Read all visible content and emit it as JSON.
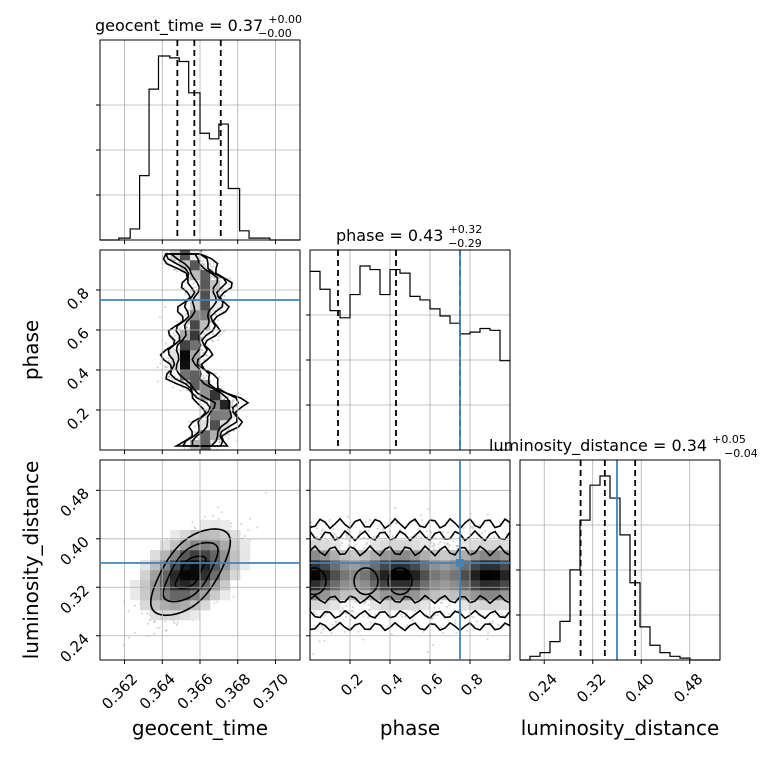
{
  "chart_data": {
    "type": "corner",
    "parameters": [
      "geocent_time",
      "phase",
      "luminosity_distance"
    ],
    "axis_labels": [
      "geocent_time",
      "phase",
      "luminosity_distance"
    ],
    "titles": {
      "geocent_time": {
        "name": "geocent_time",
        "median": "0.37",
        "plus": "+0.00",
        "minus": "−0.00"
      },
      "phase": {
        "name": "phase",
        "median": "0.43",
        "plus": "+0.32",
        "minus": "−0.29"
      },
      "luminosity_distance": {
        "name": "luminosity_distance",
        "median": "0.34",
        "plus": "+0.05",
        "minus": "−0.04"
      }
    },
    "ranges": {
      "geocent_time": [
        0.3607,
        0.3713
      ],
      "phase": [
        0.0,
        1.0
      ],
      "luminosity_distance": [
        0.2,
        0.53
      ]
    },
    "ticks": {
      "geocent_time": {
        "values": [
          0.362,
          0.364,
          0.366,
          0.368,
          0.37
        ],
        "labels": [
          "0.362",
          "0.364",
          "0.366",
          "0.368",
          "0.370"
        ]
      },
      "phase": {
        "values": [
          0.2,
          0.4,
          0.6,
          0.8
        ],
        "labels": [
          "0.2",
          "0.4",
          "0.6",
          "0.8"
        ]
      },
      "luminosity_distance": {
        "values": [
          0.24,
          0.32,
          0.4,
          0.48
        ],
        "labels": [
          "0.24",
          "0.32",
          "0.40",
          "0.48"
        ]
      }
    },
    "quantiles": {
      "geocent_time": [
        0.3648,
        0.3657,
        0.3671
      ],
      "phase": [
        0.14,
        0.43,
        0.75
      ],
      "luminosity_distance": [
        0.3,
        0.34,
        0.39
      ]
    },
    "truths": {
      "phase": 0.75,
      "luminosity_distance": 0.36
    },
    "histograms": {
      "geocent_time": {
        "edges": [
          0.3607,
          0.3612,
          0.3617,
          0.3623,
          0.3628,
          0.3633,
          0.3638,
          0.3644,
          0.3649,
          0.3654,
          0.366,
          0.3665,
          0.367,
          0.3675,
          0.3681,
          0.3686,
          0.3691,
          0.3697,
          0.3702,
          0.3707,
          0.3713
        ],
        "counts": [
          0,
          0,
          1,
          6,
          35,
          82,
          100,
          99,
          97,
          80,
          58,
          55,
          63,
          28,
          5,
          1,
          1,
          0,
          0,
          0
        ]
      },
      "phase": {
        "edges": [
          0.0,
          0.05,
          0.1,
          0.15,
          0.2,
          0.25,
          0.3,
          0.35,
          0.4,
          0.45,
          0.5,
          0.55,
          0.6,
          0.65,
          0.7,
          0.75,
          0.8,
          0.85,
          0.9,
          0.95,
          1.0
        ],
        "counts": [
          100,
          90,
          78,
          74,
          87,
          103,
          101,
          87,
          101,
          99,
          86,
          84,
          79,
          75,
          71,
          65,
          66,
          68,
          67,
          50
        ]
      },
      "luminosity_distance": {
        "edges": [
          0.2,
          0.2165,
          0.233,
          0.2495,
          0.266,
          0.2825,
          0.299,
          0.3155,
          0.332,
          0.3485,
          0.365,
          0.3815,
          0.398,
          0.4145,
          0.431,
          0.4475,
          0.464,
          0.4805,
          0.497,
          0.5135,
          0.53
        ],
        "counts": [
          0,
          2,
          4,
          10,
          21,
          49,
          76,
          95,
          100,
          88,
          68,
          42,
          18,
          8,
          4,
          2,
          1,
          0,
          0,
          0
        ]
      }
    },
    "contours_2d": {
      "phase_vs_geocent_time": {
        "x": "geocent_time",
        "y": "phase",
        "ridge": [
          [
            0.365,
            0.99
          ],
          [
            0.3657,
            0.92
          ],
          [
            0.3664,
            0.85
          ],
          [
            0.3662,
            0.72
          ],
          [
            0.3658,
            0.62
          ],
          [
            0.3654,
            0.52
          ],
          [
            0.3652,
            0.44
          ],
          [
            0.3656,
            0.35
          ],
          [
            0.3664,
            0.29
          ],
          [
            0.3672,
            0.24
          ],
          [
            0.367,
            0.15
          ],
          [
            0.3663,
            0.06
          ],
          [
            0.366,
            0.0
          ]
        ]
      },
      "luminosity_distance_vs_geocent_time": {
        "x": "geocent_time",
        "y": "luminosity_distance",
        "center": [
          0.3655,
          0.345
        ],
        "width": [
          0.0045,
          0.12
        ]
      },
      "luminosity_distance_vs_phase": {
        "x": "phase",
        "y": "luminosity_distance",
        "center": [
          0.5,
          0.34
        ],
        "width": [
          1.0,
          0.09
        ]
      }
    }
  }
}
